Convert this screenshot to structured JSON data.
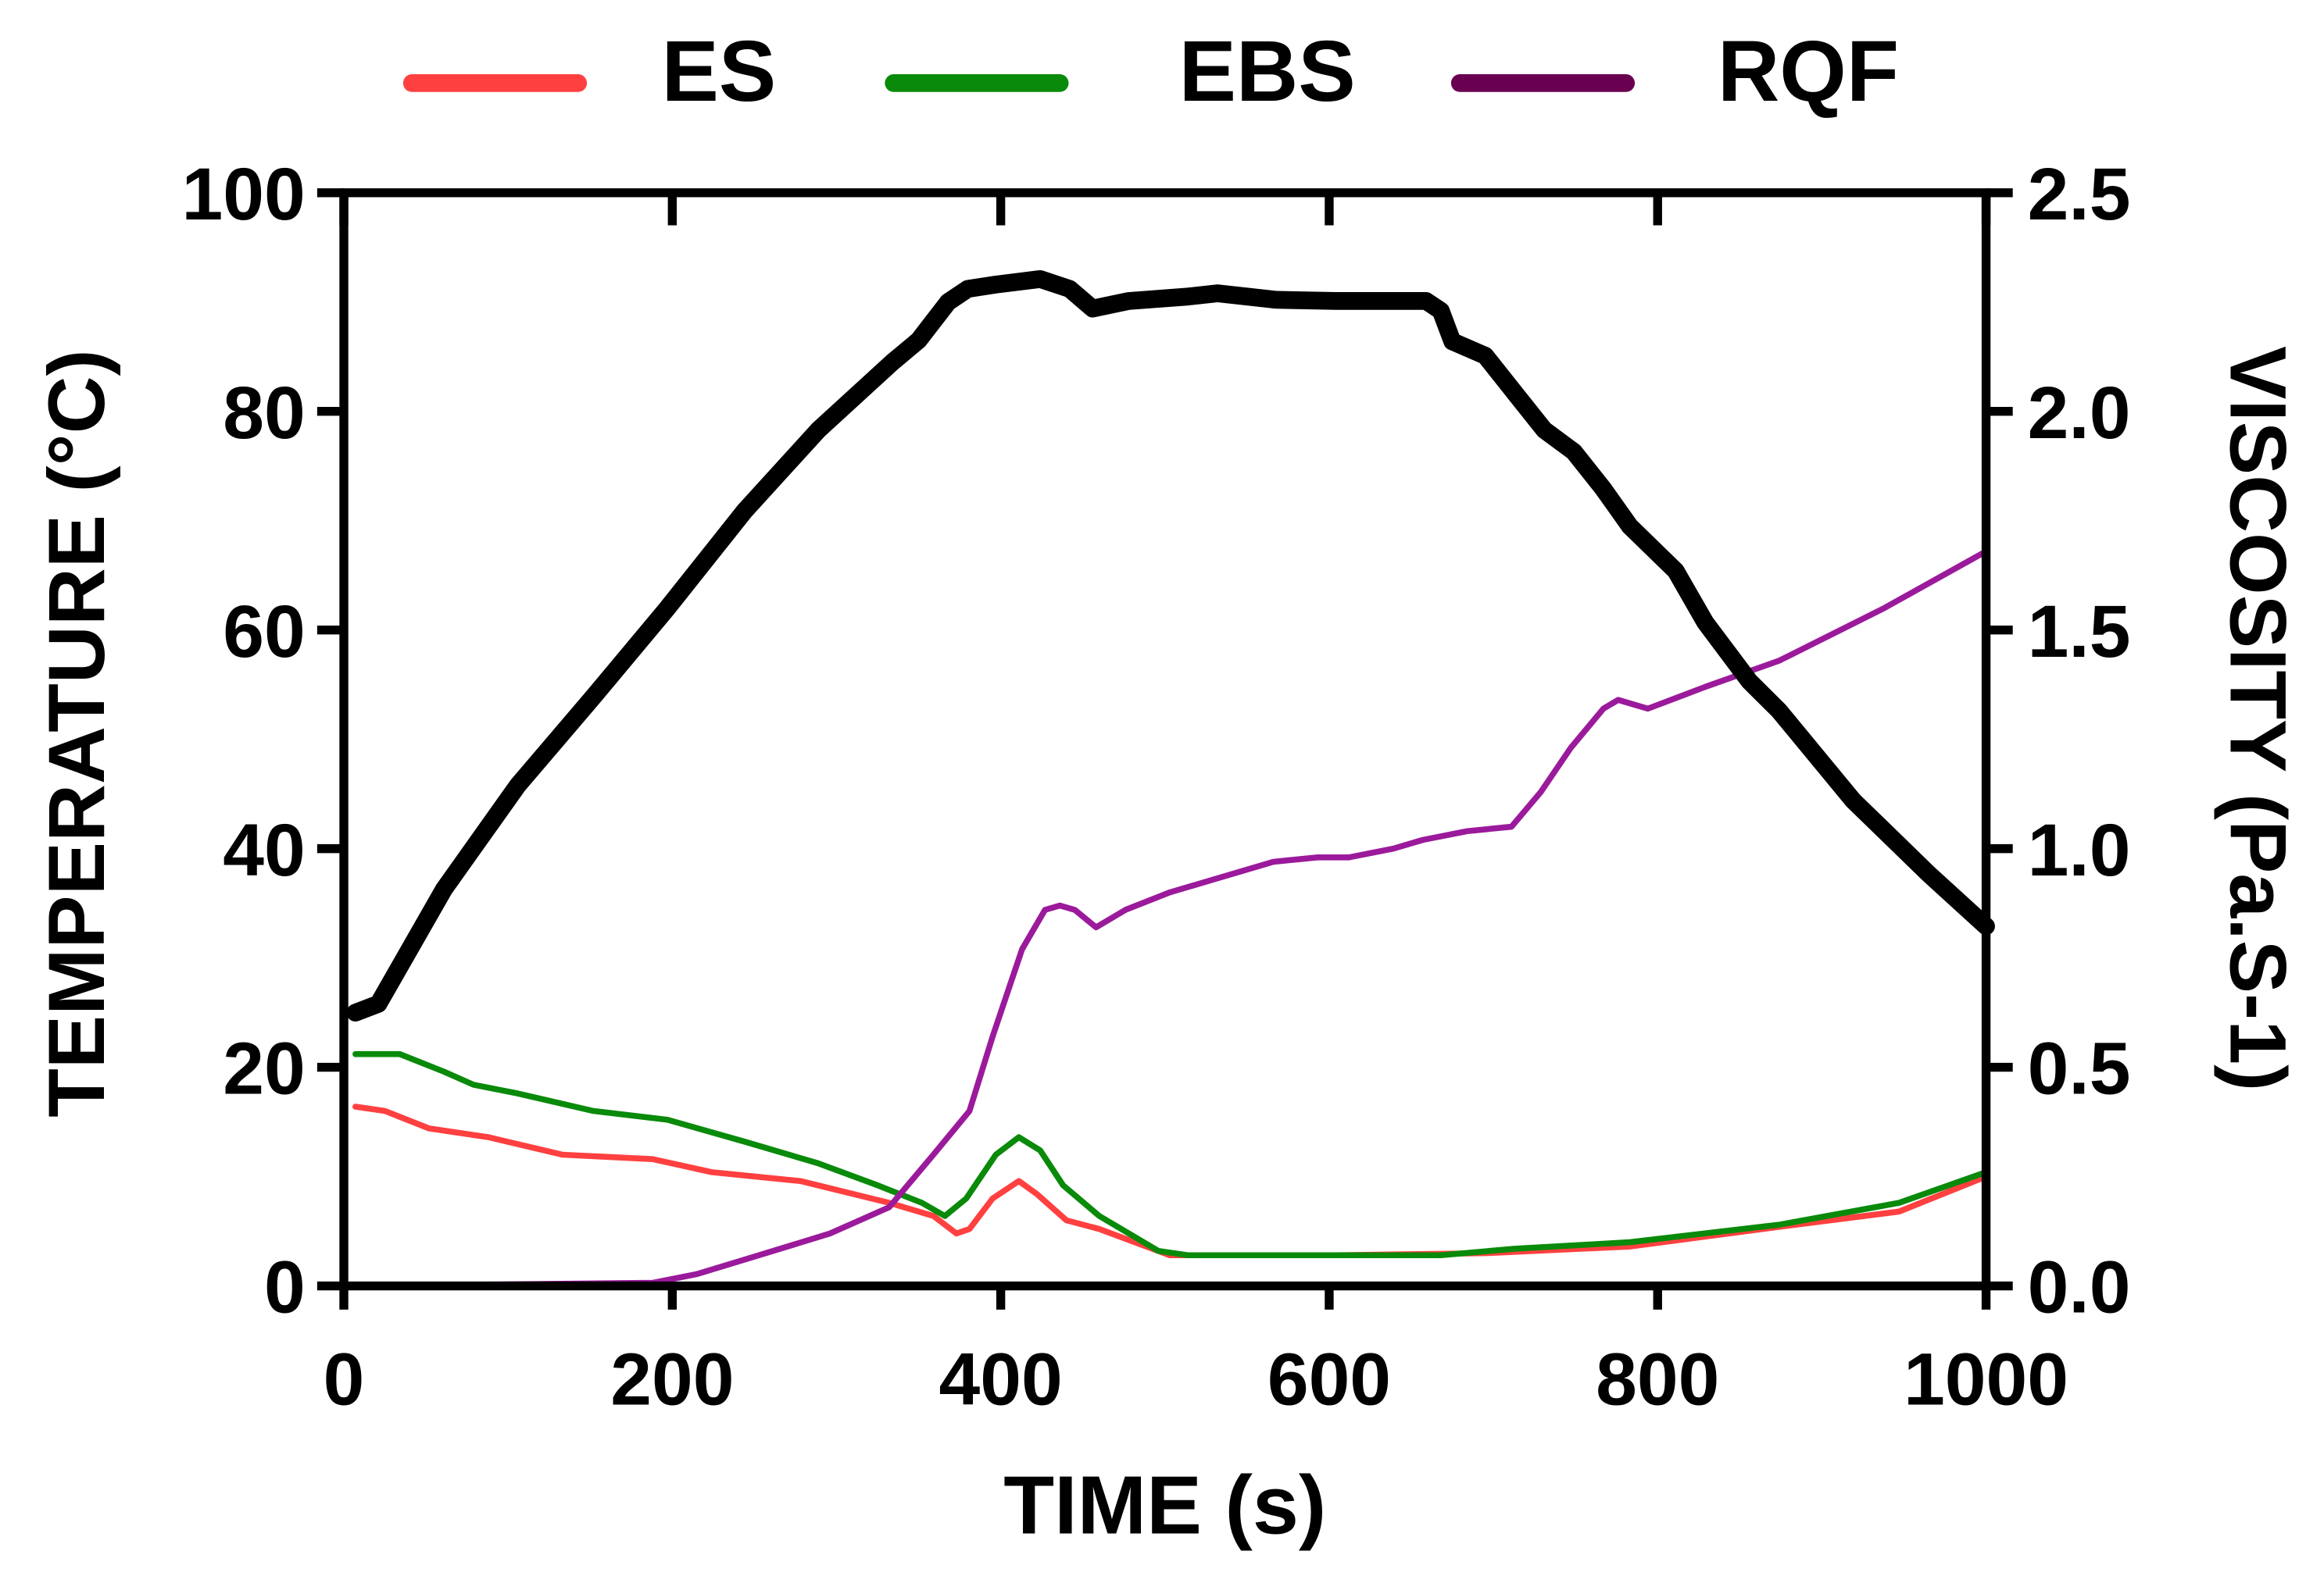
{
  "chart_data": {
    "type": "line",
    "title": "",
    "xlabel": "TIME (s)",
    "ylabel": "TEMPERATURE (°C)",
    "y2label": "VISCOSITY (Pa.S-1)",
    "xlim": [
      0,
      1000
    ],
    "ylim": [
      0,
      100
    ],
    "y2lim": [
      0,
      2.5
    ],
    "x_ticks": [
      "0",
      "200",
      "400",
      "600",
      "800",
      "1000"
    ],
    "y_ticks": [
      "0",
      "20",
      "40",
      "60",
      "80",
      "100"
    ],
    "y2_ticks": [
      "0.0",
      "0.5",
      "1.0",
      "1.5",
      "2.0",
      "2.5"
    ],
    "grid": false,
    "legend_position": "top",
    "series": [
      {
        "name": "ES",
        "axis": "right",
        "color": "#ff4040",
        "legend_color": "#ff4040",
        "x": [
          7,
          25,
          52,
          88,
          133,
          188,
          224,
          278,
          332,
          359,
          373,
          381,
          395,
          411,
          422,
          440,
          460,
          503,
          604,
          695,
          783,
          874,
          947,
          1000
        ],
        "y": [
          0.41,
          0.4,
          0.36,
          0.34,
          0.3,
          0.29,
          0.26,
          0.24,
          0.19,
          0.16,
          0.12,
          0.13,
          0.2,
          0.24,
          0.21,
          0.15,
          0.13,
          0.07,
          0.07,
          0.075,
          0.09,
          0.135,
          0.17,
          0.25
        ]
      },
      {
        "name": "EBS",
        "axis": "right",
        "color": "#0a8a0a",
        "legend_color": "#0a8a0a",
        "x": [
          7,
          34,
          61,
          79,
          106,
          152,
          197,
          244,
          289,
          325,
          352,
          366,
          379,
          397,
          411,
          424,
          438,
          460,
          496,
          514,
          604,
          668,
          713,
          783,
          874,
          947,
          1000
        ],
        "y": [
          0.53,
          0.53,
          0.49,
          0.46,
          0.44,
          0.4,
          0.38,
          0.33,
          0.28,
          0.23,
          0.19,
          0.16,
          0.2,
          0.3,
          0.34,
          0.31,
          0.23,
          0.16,
          0.08,
          0.07,
          0.07,
          0.07,
          0.085,
          0.1,
          0.14,
          0.19,
          0.26
        ]
      },
      {
        "name": "RQF",
        "axis": "right",
        "color": "#9b1a9b",
        "legend_color": "#6a0050",
        "x": [
          7,
          188,
          215,
          251,
          296,
          332,
          359,
          381,
          395,
          413,
          427,
          436,
          445,
          458,
          476,
          503,
          530,
          566,
          593,
          612,
          639,
          657,
          684,
          711,
          729,
          747,
          767,
          776,
          794,
          829,
          874,
          938,
          1000
        ],
        "y": [
          0,
          0.007,
          0.027,
          0.068,
          0.12,
          0.18,
          0.3,
          0.4,
          0.57,
          0.77,
          0.86,
          0.87,
          0.86,
          0.82,
          0.86,
          0.9,
          0.93,
          0.97,
          0.98,
          0.98,
          1.0,
          1.02,
          1.04,
          1.05,
          1.13,
          1.23,
          1.32,
          1.34,
          1.32,
          1.37,
          1.43,
          1.55,
          1.68
        ]
      },
      {
        "axis": "left",
        "color": "#000000",
        "x": [
          7,
          21,
          61,
          106,
          152,
          197,
          244,
          289,
          334,
          350,
          368,
          380,
          397,
          424,
          442,
          456,
          478,
          514,
          532,
          568,
          604,
          659,
          668,
          675,
          695,
          713,
          731,
          749,
          767,
          783,
          811,
          829,
          856,
          874,
          919,
          965,
          1000
        ],
        "y": [
          25,
          25.8,
          36.3,
          45.8,
          53.9,
          62,
          70.9,
          78.3,
          84.5,
          86.5,
          90,
          91.2,
          91.6,
          92.1,
          91.2,
          89.4,
          90.1,
          90.5,
          90.8,
          90.2,
          90.1,
          90.1,
          89.2,
          86.4,
          85.1,
          81.7,
          78.3,
          76.3,
          72.9,
          69.5,
          65.4,
          60.7,
          55.3,
          52.6,
          44.4,
          37.7,
          32.9
        ]
      }
    ]
  }
}
